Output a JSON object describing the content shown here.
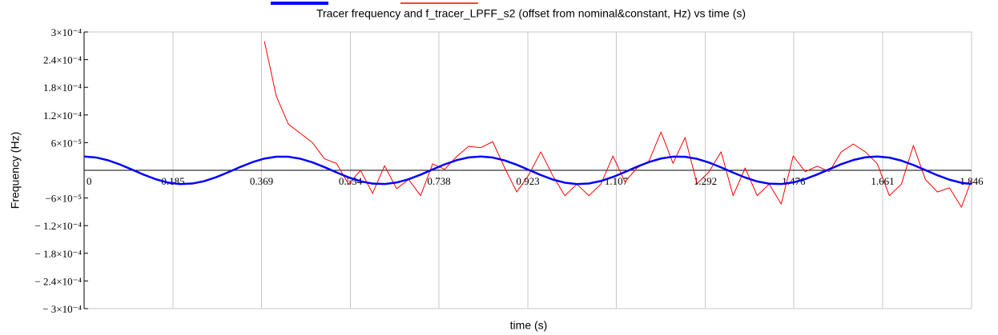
{
  "chart_data": {
    "type": "line",
    "title": "Tracer frequency and f_tracer_LPFF_s2 (offset from nominal&constant, Hz) vs time (s)",
    "x_label": "time (s)",
    "y_label": "Frequency (Hz)",
    "x": [
      0,
      0.025,
      0.05,
      0.075,
      0.1,
      0.125,
      0.15,
      0.175,
      0.2,
      0.225,
      0.25,
      0.275,
      0.3,
      0.325,
      0.35,
      0.375,
      0.4,
      0.425,
      0.45,
      0.475,
      0.5,
      0.525,
      0.55,
      0.575,
      0.6,
      0.625,
      0.65,
      0.675,
      0.7,
      0.725,
      0.75,
      0.775,
      0.8,
      0.825,
      0.85,
      0.875,
      0.9,
      0.925,
      0.95,
      0.975,
      1.0,
      1.025,
      1.05,
      1.075,
      1.1,
      1.125,
      1.15,
      1.175,
      1.2,
      1.225,
      1.25,
      1.275,
      1.3,
      1.325,
      1.35,
      1.375,
      1.4,
      1.425,
      1.45,
      1.475,
      1.5,
      1.525,
      1.55,
      1.575,
      1.6,
      1.625,
      1.65,
      1.675,
      1.7,
      1.725,
      1.75,
      1.775,
      1.8,
      1.825,
      1.846
    ],
    "series": [
      {
        "color": "#0000ff",
        "values": [
          3e-05,
          2.78e-05,
          2.17e-05,
          1.24e-05,
          1.4e-06,
          -9.9e-06,
          -1.97e-05,
          -2.67e-05,
          -2.99e-05,
          -2.87e-05,
          -2.35e-05,
          -1.49e-05,
          -4.1e-06,
          7.3e-06,
          1.76e-05,
          2.54e-05,
          2.95e-05,
          2.94e-05,
          2.51e-05,
          1.72e-05,
          6.8e-06,
          -4.5e-06,
          -1.53e-05,
          -2.38e-05,
          -2.89e-05,
          -2.98e-05,
          -2.65e-05,
          -1.94e-05,
          -9.4e-06,
          1.8e-06,
          1.28e-05,
          2.2e-05,
          2.8e-05,
          3e-05,
          2.77e-05,
          2.14e-05,
          1.2e-05,
          9e-07,
          -1.03e-05,
          -2.01e-05,
          -2.69e-05,
          -2.99e-05,
          -2.86e-05,
          -2.32e-05,
          -1.45e-05,
          -3.7e-06,
          7.7e-06,
          1.79e-05,
          2.56e-05,
          2.96e-05,
          2.93e-05,
          2.48e-05,
          1.68e-05,
          6.3e-06,
          -5e-06,
          -1.56e-05,
          -2.41e-05,
          -2.9e-05,
          -2.98e-05,
          -2.63e-05,
          -1.9e-05,
          -9e-06,
          2.3e-06,
          1.33e-05,
          2.23e-05,
          2.82e-05,
          3e-05,
          2.75e-05,
          2.1e-05,
          1.15e-05,
          4e-07,
          -1.08e-05,
          -2.04e-05,
          -2.71e-05,
          -2.98e-05
        ]
      },
      {
        "color": "#ff0000",
        "values": [
          null,
          null,
          null,
          null,
          null,
          null,
          null,
          null,
          null,
          null,
          null,
          null,
          null,
          null,
          null,
          0.00028,
          0.00016,
          0.0001,
          8e-05,
          6e-05,
          2.5e-05,
          1.5e-05,
          -3e-05,
          0,
          -5e-05,
          1e-05,
          -4e-05,
          -2e-05,
          -5.5e-05,
          1.4e-05,
          2e-06,
          3e-05,
          5.2e-05,
          4.9e-05,
          6.2e-05,
          5e-06,
          -4.7e-05,
          -1e-05,
          4e-05,
          -1.2e-05,
          -5.5e-05,
          -3e-05,
          -5.5e-05,
          -3e-05,
          3.1e-05,
          -2.5e-05,
          5e-06,
          2e-05,
          8.3e-05,
          1.5e-05,
          7.1e-05,
          -2.9e-05,
          -3e-06,
          4e-05,
          -5.5e-05,
          5e-06,
          -5.5e-05,
          -3e-05,
          -7.3e-05,
          3.1e-05,
          -3e-06,
          9e-06,
          -3e-06,
          4e-05,
          5.7e-05,
          4e-05,
          1.4e-05,
          -5.5e-05,
          -3e-05,
          5.4e-05,
          -2e-05,
          -4.7e-05,
          -3.8e-05,
          -8e-05,
          -2e-05
        ]
      }
    ],
    "xlim": [
      0,
      1.846
    ],
    "xticks": [
      0,
      0.185,
      0.369,
      0.554,
      0.738,
      0.923,
      1.107,
      1.292,
      1.476,
      1.661,
      1.846
    ],
    "ylim": [
      -0.0003,
      0.0003
    ],
    "yticks": [
      {
        "value": 0.0003,
        "label": "3×10⁻⁴"
      },
      {
        "value": 0.00024,
        "label": "2.4×10⁻⁴"
      },
      {
        "value": 0.00018,
        "label": "1.8×10⁻⁴"
      },
      {
        "value": 0.00012,
        "label": "1.2×10⁻⁴"
      },
      {
        "value": 6e-05,
        "label": "6×10⁻⁵"
      },
      {
        "value": -6e-05,
        "label": "−6×10⁻⁵"
      },
      {
        "value": -0.00012,
        "label": "− 1.2×10⁻⁴"
      },
      {
        "value": -0.00018,
        "label": "− 1.8×10⁻⁴"
      },
      {
        "value": -0.00024,
        "label": "− 2.4×10⁻⁴"
      },
      {
        "value": -0.0003,
        "label": "− 3×10⁻⁴"
      }
    ],
    "grid": true
  }
}
